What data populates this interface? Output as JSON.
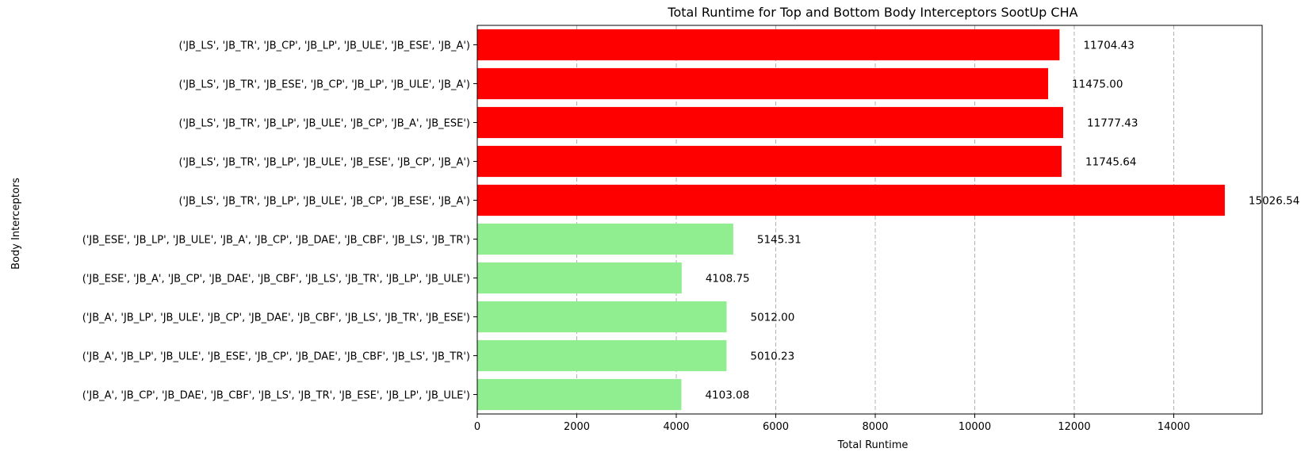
{
  "chart_data": {
    "type": "bar",
    "orientation": "horizontal",
    "title": "Total Runtime for Top and Bottom Body Interceptors SootUp CHA",
    "xlabel": "Total Runtime",
    "ylabel": "Body Interceptors",
    "xlim": [
      0,
      15777
    ],
    "x_ticks": [
      0,
      2000,
      4000,
      6000,
      8000,
      10000,
      12000,
      14000
    ],
    "grid": "x-dashed",
    "colors": {
      "top": "#ff0000",
      "bottom": "#90ee90"
    },
    "bars": [
      {
        "category": "('JB_LS', 'JB_TR', 'JB_CP', 'JB_LP', 'JB_ULE', 'JB_ESE', 'JB_A')",
        "value": 11704.43,
        "label": "11704.43",
        "group": "top"
      },
      {
        "category": "('JB_LS', 'JB_TR', 'JB_ESE', 'JB_CP', 'JB_LP', 'JB_ULE', 'JB_A')",
        "value": 11475.0,
        "label": "11475.00",
        "group": "top"
      },
      {
        "category": "('JB_LS', 'JB_TR', 'JB_LP', 'JB_ULE', 'JB_CP', 'JB_A', 'JB_ESE')",
        "value": 11777.43,
        "label": "11777.43",
        "group": "top"
      },
      {
        "category": "('JB_LS', 'JB_TR', 'JB_LP', 'JB_ULE', 'JB_ESE', 'JB_CP', 'JB_A')",
        "value": 11745.64,
        "label": "11745.64",
        "group": "top"
      },
      {
        "category": "('JB_LS', 'JB_TR', 'JB_LP', 'JB_ULE', 'JB_CP', 'JB_ESE', 'JB_A')",
        "value": 15026.54,
        "label": "15026.54",
        "group": "top"
      },
      {
        "category": "('JB_ESE', 'JB_LP', 'JB_ULE', 'JB_A', 'JB_CP', 'JB_DAE', 'JB_CBF', 'JB_LS', 'JB_TR')",
        "value": 5145.31,
        "label": "5145.31",
        "group": "bottom"
      },
      {
        "category": "('JB_ESE', 'JB_A', 'JB_CP', 'JB_DAE', 'JB_CBF', 'JB_LS', 'JB_TR', 'JB_LP', 'JB_ULE')",
        "value": 4108.75,
        "label": "4108.75",
        "group": "bottom"
      },
      {
        "category": "('JB_A', 'JB_LP', 'JB_ULE', 'JB_CP', 'JB_DAE', 'JB_CBF', 'JB_LS', 'JB_TR', 'JB_ESE')",
        "value": 5012.0,
        "label": "5012.00",
        "group": "bottom"
      },
      {
        "category": "('JB_A', 'JB_LP', 'JB_ULE', 'JB_ESE', 'JB_CP', 'JB_DAE', 'JB_CBF', 'JB_LS', 'JB_TR')",
        "value": 5010.23,
        "label": "5010.23",
        "group": "bottom"
      },
      {
        "category": "('JB_A', 'JB_CP', 'JB_DAE', 'JB_CBF', 'JB_LS', 'JB_TR', 'JB_ESE', 'JB_LP', 'JB_ULE')",
        "value": 4103.08,
        "label": "4103.08",
        "group": "bottom"
      }
    ]
  }
}
